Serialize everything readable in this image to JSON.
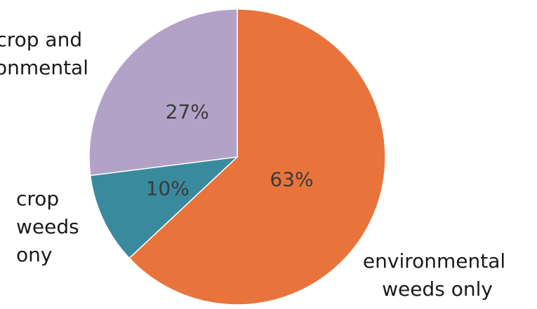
{
  "chart_data": {
    "type": "pie",
    "slices": [
      {
        "label": "environmental weeds only",
        "value": 63,
        "percent_label": "63%",
        "color": "#E8743C"
      },
      {
        "label": "crop weeds ony",
        "value": 10,
        "percent_label": "10%",
        "color": "#3A8A9E"
      },
      {
        "label": "crop and environmental",
        "value": 27,
        "percent_label": "27%",
        "color": "#B3A2C8"
      }
    ],
    "category_labels": [
      {
        "lines": [
          "environmental",
          "weeds only"
        ]
      },
      {
        "lines": [
          "crop",
          "weeds",
          "ony"
        ]
      },
      {
        "lines": [
          "crop and",
          "environmental"
        ]
      }
    ],
    "start": "12 o'clock",
    "direction": "clockwise",
    "legend": "none"
  }
}
